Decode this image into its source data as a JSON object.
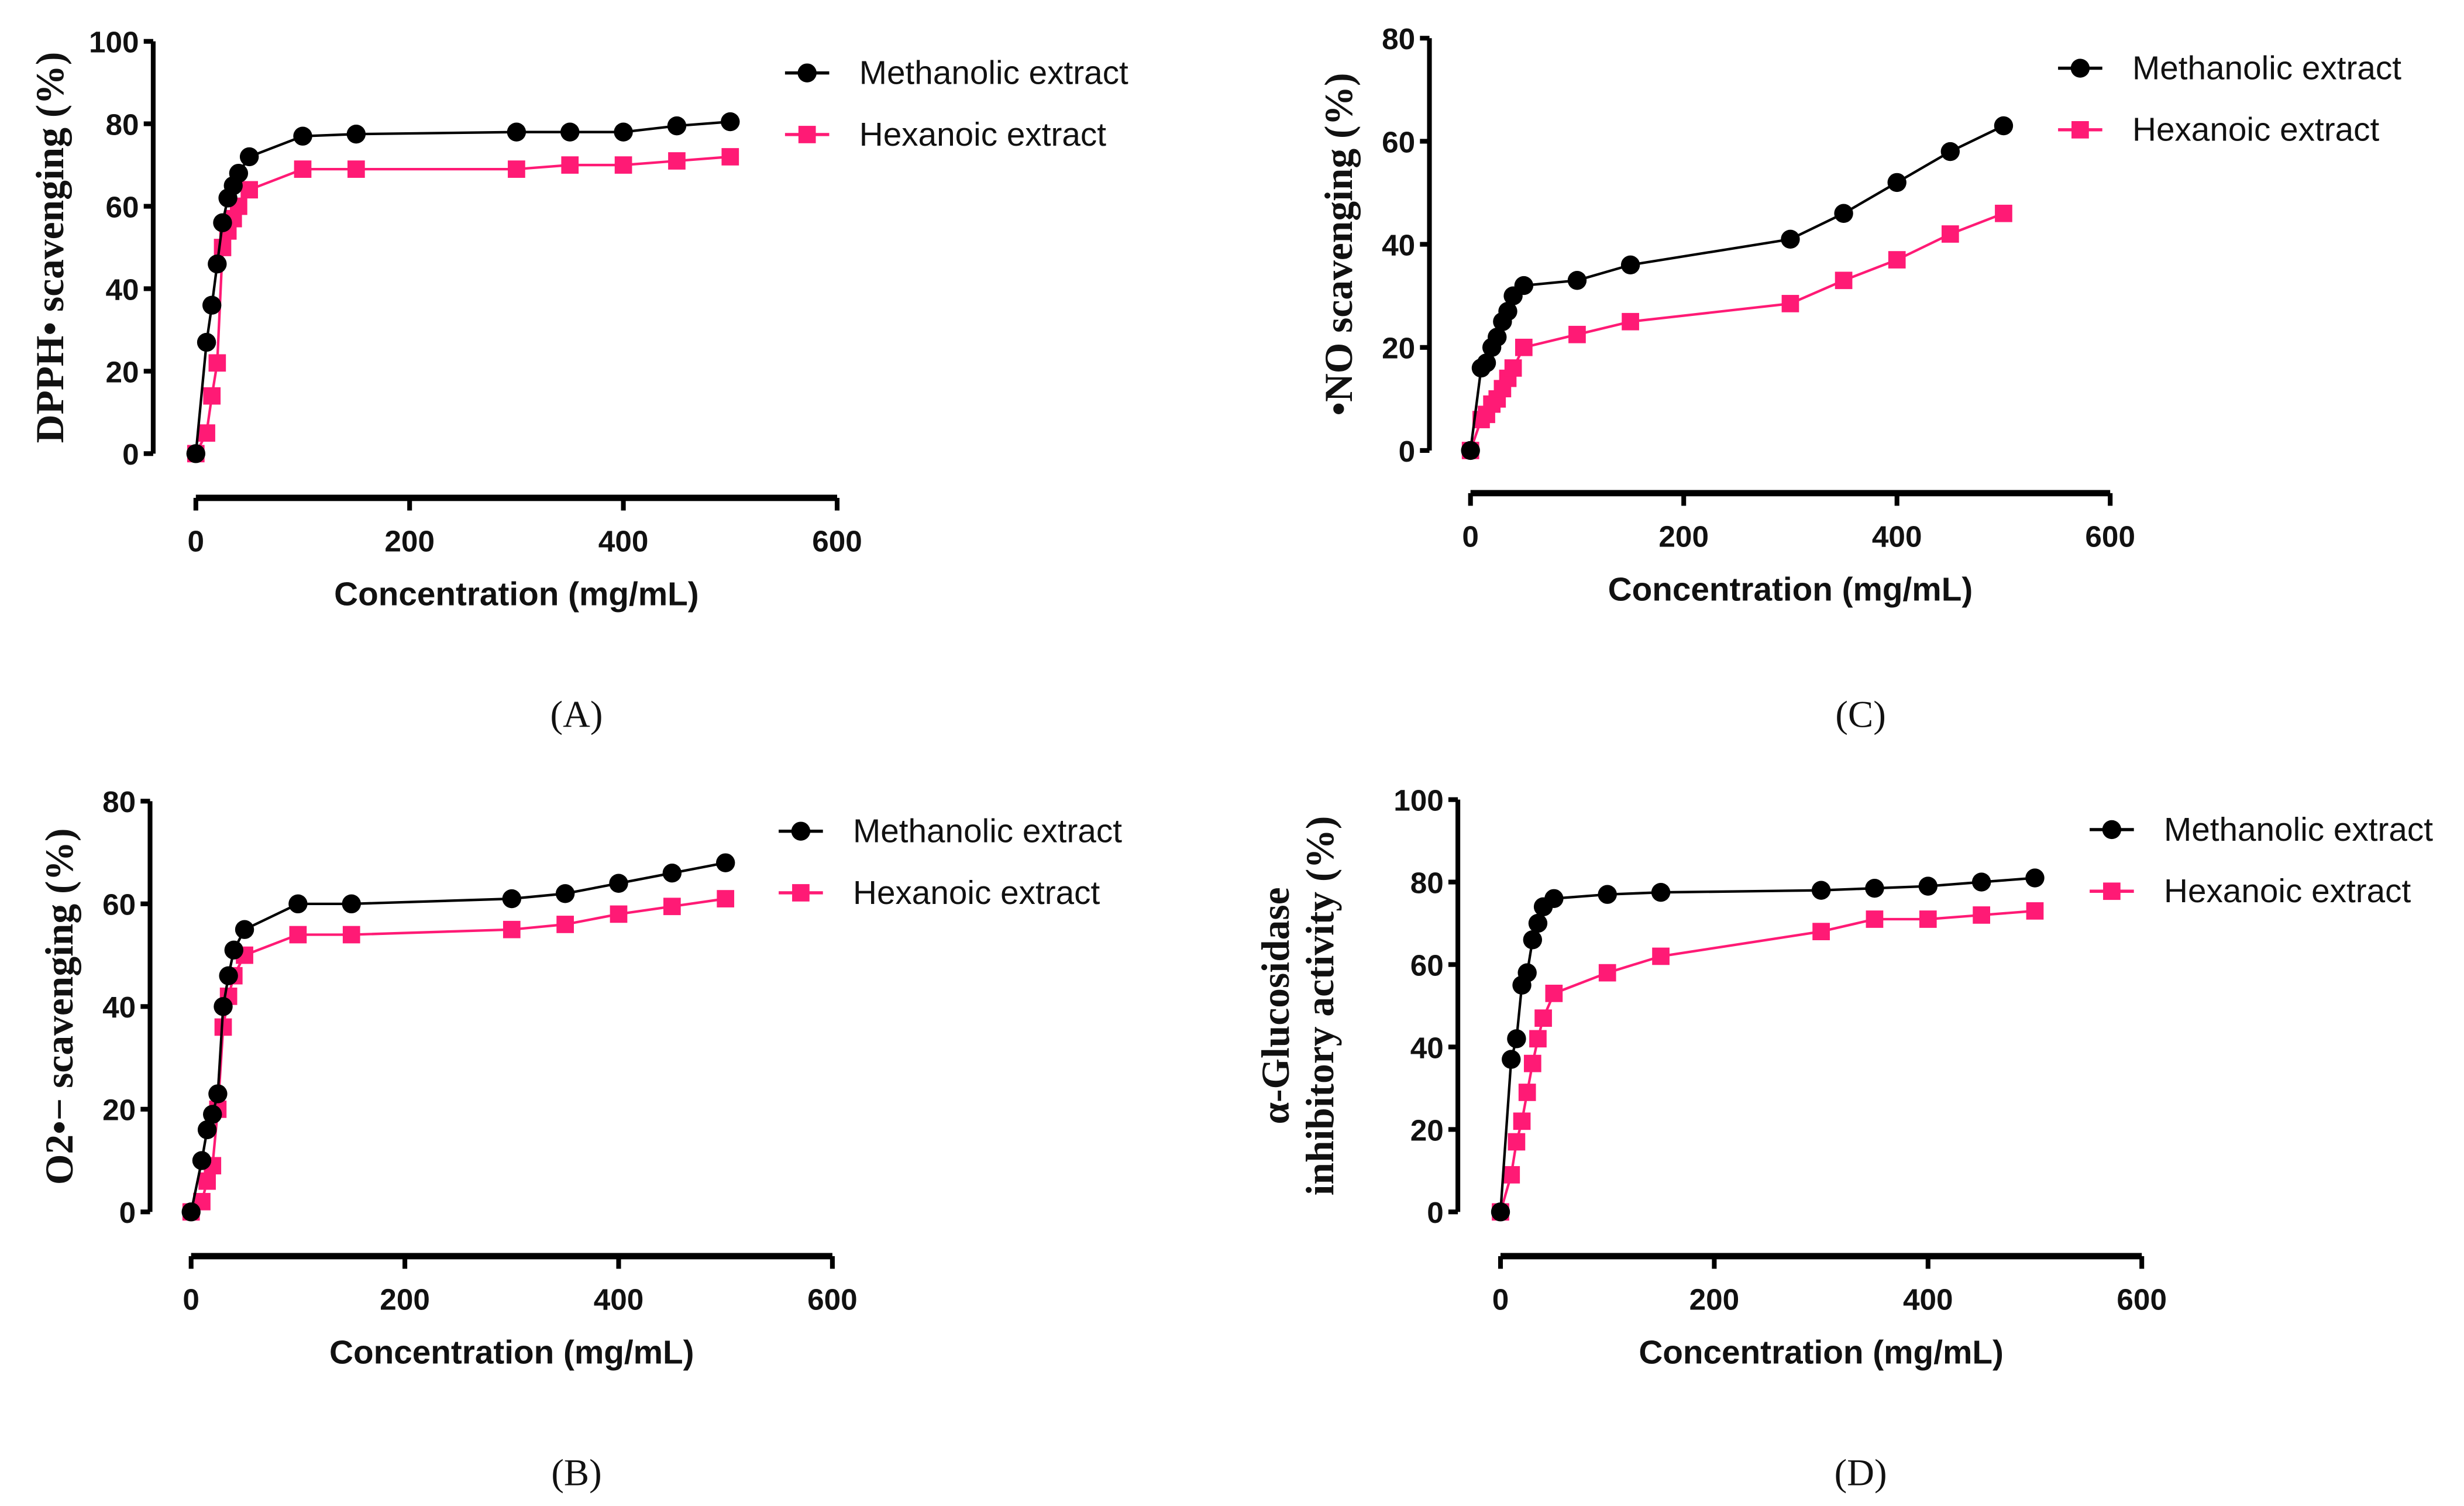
{
  "colors": {
    "methanolic": "#000000",
    "hexanoic": "#ff1a75"
  },
  "chart_data": [
    {
      "type": "line",
      "panel_label": "(A)",
      "xlabel": "Concentration (mg/mL)",
      "ylabel": [
        "DPPH• scavenging (%)"
      ],
      "xlim": [
        0,
        600
      ],
      "ylim": [
        0,
        100
      ],
      "xticks": [
        0,
        200,
        400,
        600
      ],
      "yticks": [
        0,
        20,
        40,
        60,
        80,
        100
      ],
      "legend": "top-right",
      "x": [
        0,
        10,
        15,
        20,
        25,
        30,
        35,
        40,
        50,
        100,
        150,
        300,
        350,
        400,
        450,
        500
      ],
      "series": [
        {
          "name": "Methanolic extract",
          "marker": "circle",
          "values": [
            0,
            27,
            36,
            46,
            56,
            62,
            65,
            68,
            72,
            77,
            77.5,
            78,
            78,
            78,
            79.5,
            80.5
          ]
        },
        {
          "name": "Hexanoic extract",
          "marker": "square",
          "values": [
            0,
            5,
            14,
            22,
            50,
            54,
            57,
            60,
            64,
            69,
            69,
            69,
            70,
            70,
            71,
            72
          ]
        }
      ]
    },
    {
      "type": "line",
      "panel_label": "(C)",
      "xlabel": "Concentration (mg/mL)",
      "ylabel": [
        "•NO scavenging (%)"
      ],
      "xlim": [
        0,
        600
      ],
      "ylim": [
        0,
        80
      ],
      "xticks": [
        0,
        200,
        400,
        600
      ],
      "yticks": [
        0,
        20,
        40,
        60,
        80
      ],
      "legend": "top-right",
      "x": [
        0,
        10,
        15,
        20,
        25,
        30,
        35,
        40,
        50,
        100,
        150,
        300,
        350,
        400,
        450,
        500
      ],
      "series": [
        {
          "name": "Methanolic extract",
          "marker": "circle",
          "values": [
            0,
            16,
            17,
            20,
            22,
            25,
            27,
            30,
            32,
            33,
            36,
            41,
            46,
            52,
            58,
            63
          ]
        },
        {
          "name": "Hexanoic extract",
          "marker": "square",
          "values": [
            0,
            6,
            7,
            9,
            10,
            12,
            14,
            16,
            20,
            22.5,
            25,
            28.5,
            33,
            37,
            42,
            46
          ]
        }
      ]
    },
    {
      "type": "line",
      "panel_label": "(B)",
      "xlabel": "Concentration (mg/mL)",
      "ylabel": [
        "O2•− scavenging (%)"
      ],
      "xlim": [
        0,
        600
      ],
      "ylim": [
        0,
        80
      ],
      "xticks": [
        0,
        200,
        400,
        600
      ],
      "yticks": [
        0,
        20,
        40,
        60,
        80
      ],
      "legend": "top-right",
      "x": [
        0,
        10,
        15,
        20,
        25,
        30,
        35,
        40,
        50,
        100,
        150,
        300,
        350,
        400,
        450,
        500
      ],
      "series": [
        {
          "name": "Methanolic extract",
          "marker": "circle",
          "values": [
            0,
            10,
            16,
            19,
            23,
            40,
            46,
            51,
            55,
            60,
            60,
            61,
            62,
            64,
            66,
            68
          ]
        },
        {
          "name": "Hexanoic extract",
          "marker": "square",
          "values": [
            0,
            2,
            6,
            9,
            20,
            36,
            42,
            46,
            50,
            54,
            54,
            55,
            56,
            58,
            59.5,
            61
          ]
        }
      ]
    },
    {
      "type": "line",
      "panel_label": "(D)",
      "xlabel": "Concentration (mg/mL)",
      "ylabel": [
        "α-Glucosidase",
        "inhibitory activity (%)"
      ],
      "xlim": [
        0,
        600
      ],
      "ylim": [
        0,
        100
      ],
      "xticks": [
        0,
        200,
        400,
        600
      ],
      "yticks": [
        0,
        20,
        40,
        60,
        80,
        100
      ],
      "legend": "top-right",
      "x": [
        0,
        10,
        15,
        20,
        25,
        30,
        35,
        40,
        50,
        100,
        150,
        300,
        350,
        400,
        450,
        500
      ],
      "series": [
        {
          "name": "Methanolic extract",
          "marker": "circle",
          "values": [
            0,
            37,
            42,
            55,
            58,
            66,
            70,
            74,
            76,
            77,
            77.5,
            78,
            78.5,
            79,
            80,
            81
          ]
        },
        {
          "name": "Hexanoic extract",
          "marker": "square",
          "values": [
            0,
            9,
            17,
            22,
            29,
            36,
            42,
            47,
            53,
            58,
            62,
            68,
            71,
            71,
            72,
            73
          ]
        }
      ]
    }
  ]
}
